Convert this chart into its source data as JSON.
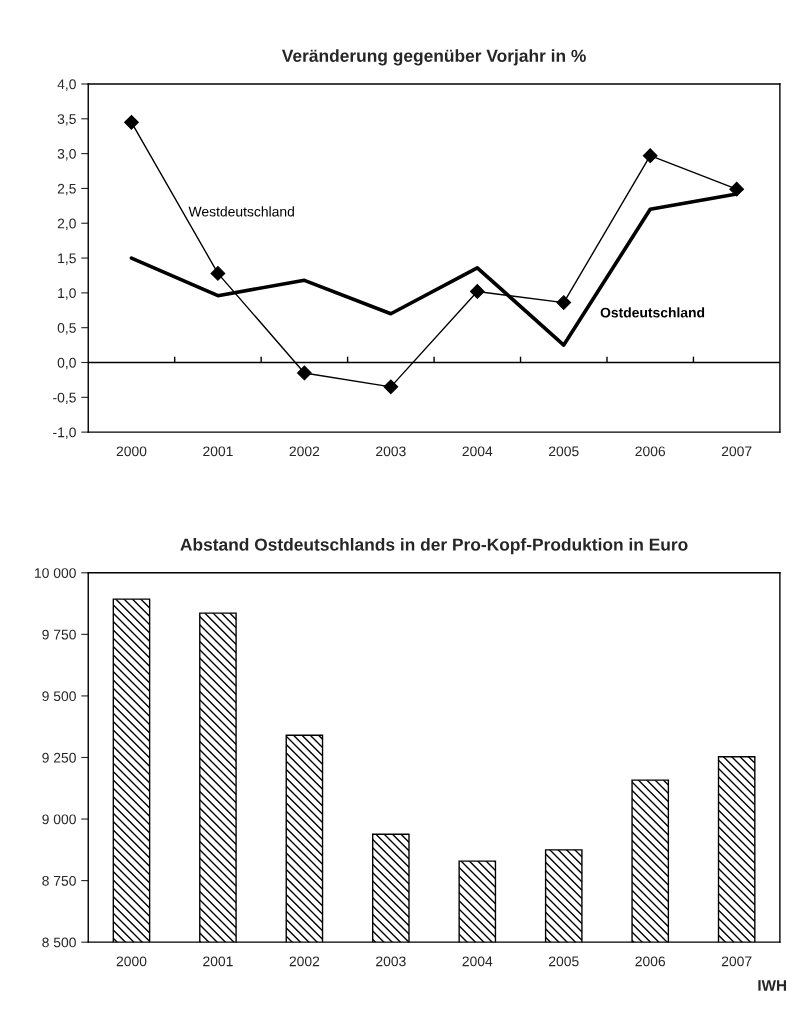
{
  "chart_data": [
    {
      "type": "line",
      "title": "Veränderung gegenüber Vorjahr in %",
      "categories": [
        "2000",
        "2001",
        "2002",
        "2003",
        "2004",
        "2005",
        "2006",
        "2007"
      ],
      "series": [
        {
          "name": "Westdeutschland",
          "color": "#000000",
          "marker": "diamond",
          "values": [
            3.45,
            1.28,
            -0.15,
            -0.35,
            1.02,
            0.86,
            2.97,
            2.49
          ]
        },
        {
          "name": "Ostdeutschland",
          "color": "#000000",
          "marker": "none",
          "values": [
            1.5,
            0.96,
            1.18,
            0.7,
            1.36,
            0.25,
            2.2,
            2.42
          ]
        }
      ],
      "ylim": [
        -1.0,
        4.0
      ],
      "yticks": [
        {
          "value": -1.0,
          "label": "-1,0"
        },
        {
          "value": -0.5,
          "label": "-0,5"
        },
        {
          "value": 0.0,
          "label": "0,0"
        },
        {
          "value": 0.5,
          "label": "0,5"
        },
        {
          "value": 1.0,
          "label": "1,0"
        },
        {
          "value": 1.5,
          "label": "1,5"
        },
        {
          "value": 2.0,
          "label": "2,0"
        },
        {
          "value": 2.5,
          "label": "2,5"
        },
        {
          "value": 3.0,
          "label": "3,0"
        },
        {
          "value": 3.5,
          "label": "3,5"
        },
        {
          "value": 4.0,
          "label": "4,0"
        }
      ],
      "ref_lines": [
        {
          "axis": "y",
          "value": 0.0,
          "color": "#000000"
        }
      ],
      "grid": false,
      "legend": false
    },
    {
      "type": "bar",
      "title": "Abstand Ostdeutschlands in der Pro-Kopf-Produktion in Euro",
      "categories": [
        "2000",
        "2001",
        "2002",
        "2003",
        "2004",
        "2005",
        "2006",
        "2007"
      ],
      "values": [
        9893,
        9836,
        9340,
        8938,
        8829,
        8875,
        9158,
        9253
      ],
      "color": "#000000",
      "ylim": [
        8500,
        10000
      ],
      "yticks": [
        {
          "value": 8500,
          "label": "8 500"
        },
        {
          "value": 8750,
          "label": "8 750"
        },
        {
          "value": 9000,
          "label": "9 000"
        },
        {
          "value": 9250,
          "label": "9 250"
        },
        {
          "value": 9500,
          "label": "9 500"
        },
        {
          "value": 9750,
          "label": "9 750"
        },
        {
          "value": 10000,
          "label": "10 000"
        }
      ],
      "annotations": [
        "IWH"
      ],
      "grid": false,
      "legend": false
    }
  ]
}
